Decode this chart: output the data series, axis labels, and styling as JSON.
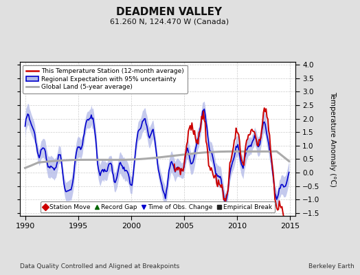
{
  "title": "DEADMEN VALLEY",
  "subtitle": "61.260 N, 124.470 W (Canada)",
  "ylabel": "Temperature Anomaly (°C)",
  "footer_left": "Data Quality Controlled and Aligned at Breakpoints",
  "footer_right": "Berkeley Earth",
  "xlim": [
    1989.5,
    2015.5
  ],
  "ylim": [
    -1.6,
    4.1
  ],
  "yticks": [
    -1.5,
    -1.0,
    -0.5,
    0,
    0.5,
    1.0,
    1.5,
    2.0,
    2.5,
    3.0,
    3.5,
    4.0
  ],
  "xticks": [
    1990,
    1995,
    2000,
    2005,
    2010,
    2015
  ],
  "bg_color": "#e0e0e0",
  "plot_bg_color": "#ffffff",
  "red_color": "#cc0000",
  "blue_color": "#0000cc",
  "blue_fill_color": "#b0b8e8",
  "gray_color": "#aaaaaa",
  "legend1_labels": [
    "This Temperature Station (12-month average)",
    "Regional Expectation with 95% uncertainty",
    "Global Land (5-year average)"
  ],
  "legend2_labels": [
    "Station Move",
    "Record Gap",
    "Time of Obs. Change",
    "Empirical Break"
  ],
  "legend2_colors": [
    "#cc0000",
    "#006600",
    "#0000cc",
    "#222222"
  ],
  "legend2_markers": [
    "D",
    "^",
    "v",
    "s"
  ]
}
